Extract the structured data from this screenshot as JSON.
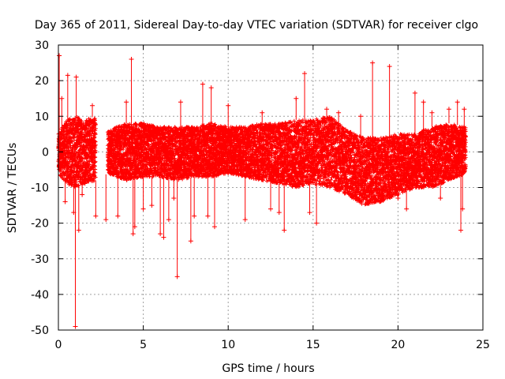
{
  "chart_data": {
    "type": "scatter",
    "title": "Day 365 of 2011, Sidereal Day-to-day VTEC variation (SDTVAR) for receiver clgo",
    "xlabel": "GPS time / hours",
    "ylabel": "SDTVAR / TECUs",
    "xlim": [
      0,
      25
    ],
    "ylim": [
      -50,
      30
    ],
    "xticks": [
      0,
      5,
      10,
      15,
      20,
      25
    ],
    "yticks": [
      -50,
      -40,
      -30,
      -20,
      -10,
      0,
      10,
      20,
      30
    ],
    "x_tick_labels": [
      "0",
      "5",
      "10",
      "15",
      "20",
      "25"
    ],
    "y_tick_labels": [
      "-50",
      "-40",
      "-30",
      "-20",
      "-10",
      "0",
      "10",
      "20",
      "30"
    ],
    "grid": true,
    "marker": "+",
    "color": "#ff0000",
    "data_gap": [
      2.2,
      2.9
    ],
    "envelope": [
      {
        "x": 0.0,
        "lo": -6,
        "hi": 5
      },
      {
        "x": 0.5,
        "lo": -9,
        "hi": 9
      },
      {
        "x": 1.0,
        "lo": -10,
        "hi": 10
      },
      {
        "x": 1.5,
        "lo": -9,
        "hi": 9
      },
      {
        "x": 2.2,
        "lo": -8,
        "hi": 10
      },
      {
        "x": 2.9,
        "lo": -6,
        "hi": 6
      },
      {
        "x": 4.0,
        "lo": -8,
        "hi": 8
      },
      {
        "x": 5.0,
        "lo": -7,
        "hi": 8
      },
      {
        "x": 6.0,
        "lo": -7,
        "hi": 7
      },
      {
        "x": 7.0,
        "lo": -8,
        "hi": 7
      },
      {
        "x": 8.0,
        "lo": -7,
        "hi": 7
      },
      {
        "x": 9.0,
        "lo": -7,
        "hi": 8
      },
      {
        "x": 10.0,
        "lo": -6,
        "hi": 7
      },
      {
        "x": 11.0,
        "lo": -7,
        "hi": 7
      },
      {
        "x": 12.0,
        "lo": -8,
        "hi": 8
      },
      {
        "x": 13.0,
        "lo": -9,
        "hi": 8
      },
      {
        "x": 14.0,
        "lo": -10,
        "hi": 9
      },
      {
        "x": 15.0,
        "lo": -9,
        "hi": 9
      },
      {
        "x": 16.0,
        "lo": -10,
        "hi": 10
      },
      {
        "x": 17.0,
        "lo": -12,
        "hi": 6
      },
      {
        "x": 18.0,
        "lo": -15,
        "hi": 4
      },
      {
        "x": 19.0,
        "lo": -14,
        "hi": 4
      },
      {
        "x": 20.0,
        "lo": -12,
        "hi": 5
      },
      {
        "x": 21.0,
        "lo": -10,
        "hi": 5
      },
      {
        "x": 22.0,
        "lo": -10,
        "hi": 7
      },
      {
        "x": 23.0,
        "lo": -8,
        "hi": 8
      },
      {
        "x": 24.0,
        "lo": -6,
        "hi": 7
      }
    ],
    "outliers": [
      [
        0.05,
        27
      ],
      [
        0.55,
        21.5
      ],
      [
        1.0,
        -49
      ],
      [
        1.05,
        21
      ],
      [
        0.9,
        -17
      ],
      [
        1.2,
        -22
      ],
      [
        0.4,
        -14
      ],
      [
        1.4,
        -12
      ],
      [
        2.0,
        13
      ],
      [
        2.2,
        -18
      ],
      [
        2.8,
        -19
      ],
      [
        4.0,
        14
      ],
      [
        4.3,
        26
      ],
      [
        4.4,
        -23
      ],
      [
        4.5,
        -21
      ],
      [
        5.0,
        -16
      ],
      [
        5.5,
        -15
      ],
      [
        6.0,
        -23
      ],
      [
        6.2,
        -24
      ],
      [
        6.5,
        -19
      ],
      [
        7.0,
        -35
      ],
      [
        7.2,
        14
      ],
      [
        7.8,
        -25
      ],
      [
        8.0,
        -18
      ],
      [
        8.5,
        19
      ],
      [
        9.0,
        18
      ],
      [
        9.2,
        -21
      ],
      [
        10.0,
        13
      ],
      [
        11.0,
        -19
      ],
      [
        12.5,
        -16
      ],
      [
        13.0,
        -17
      ],
      [
        13.3,
        -22
      ],
      [
        14.0,
        15
      ],
      [
        14.5,
        22
      ],
      [
        14.8,
        -17
      ],
      [
        15.2,
        -20
      ],
      [
        16.5,
        11
      ],
      [
        17.2,
        -12
      ],
      [
        18.5,
        25
      ],
      [
        19.5,
        24
      ],
      [
        19.4,
        -11
      ],
      [
        20.0,
        -13
      ],
      [
        20.5,
        -16
      ],
      [
        21.0,
        16.5
      ],
      [
        21.5,
        14
      ],
      [
        22.0,
        11
      ],
      [
        22.5,
        -13
      ],
      [
        23.0,
        12
      ],
      [
        23.5,
        14
      ],
      [
        23.7,
        -22
      ],
      [
        23.8,
        -16
      ],
      [
        23.9,
        12
      ],
      [
        3.5,
        -18
      ],
      [
        6.8,
        -13
      ],
      [
        8.8,
        -18
      ],
      [
        12.0,
        11
      ],
      [
        15.8,
        12
      ],
      [
        17.8,
        10
      ],
      [
        19.7,
        -10
      ],
      [
        0.2,
        15
      ]
    ]
  }
}
